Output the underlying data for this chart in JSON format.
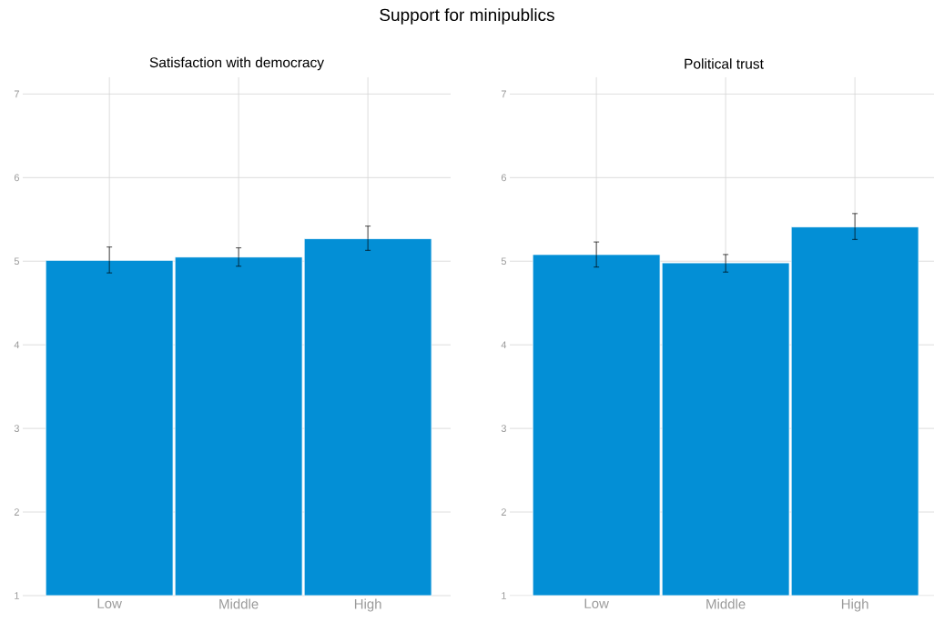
{
  "chart_data": [
    {
      "type": "bar",
      "title": "Support for minipublics",
      "subtitle": "Satisfaction with democracy",
      "categories": [
        "Low",
        "Middle",
        "High"
      ],
      "values": [
        5.01,
        5.05,
        5.27
      ],
      "errors": [
        [
          4.86,
          5.17
        ],
        [
          4.94,
          5.16
        ],
        [
          5.13,
          5.42
        ]
      ],
      "color": "#038fd6",
      "ylim": [
        1,
        7.2
      ],
      "yticks": [
        1,
        2,
        3,
        4,
        5,
        6,
        7
      ],
      "grid": true
    },
    {
      "type": "bar",
      "subtitle": "Political trust",
      "categories": [
        "Low",
        "Middle",
        "High"
      ],
      "values": [
        5.08,
        4.98,
        5.41
      ],
      "errors": [
        [
          4.93,
          5.23
        ],
        [
          4.87,
          5.08
        ],
        [
          5.26,
          5.57
        ]
      ],
      "color": "#038fd6",
      "ylim": [
        1,
        7.2
      ],
      "yticks": [
        1,
        2,
        3,
        4,
        5,
        6,
        7
      ],
      "grid": true
    }
  ]
}
